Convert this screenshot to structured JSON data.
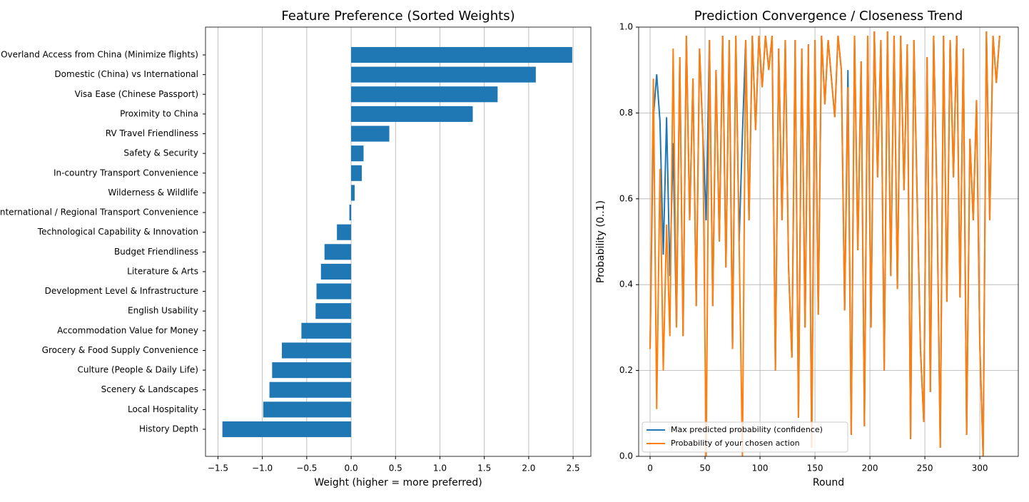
{
  "chart_data": [
    {
      "type": "barh",
      "title": "Feature Preference (Sorted Weights)",
      "x_label": "Weight (higher = more preferred)",
      "categories": [
        "Overland Access from China (Minimize flights)",
        "Domestic (China) vs International",
        "Visa Ease (Chinese Passport)",
        "Proximity to China",
        "RV Travel Friendliness",
        "Safety & Security",
        "In-country Transport Convenience",
        "Wilderness & Wildlife",
        "International / Regional Transport Convenience",
        "Technological Capability & Innovation",
        "Budget Friendliness",
        "Literature & Arts",
        "Development Level & Infrastructure",
        "English Usability",
        "Accommodation Value for Money",
        "Grocery & Food Supply Convenience",
        "Culture (People & Daily Life)",
        "Scenery & Landscapes",
        "Local Hospitality",
        "History Depth"
      ],
      "values": [
        2.49,
        2.08,
        1.65,
        1.37,
        0.43,
        0.14,
        0.12,
        0.04,
        -0.02,
        -0.16,
        -0.3,
        -0.34,
        -0.39,
        -0.4,
        -0.56,
        -0.78,
        -0.89,
        -0.92,
        -0.99,
        -1.45
      ],
      "color": "#1f77b4",
      "xlim": [
        -1.64,
        2.7
      ],
      "xticks": [
        {
          "value": -1.5,
          "label": "−1.5"
        },
        {
          "value": -1.0,
          "label": "−1.0"
        },
        {
          "value": -0.5,
          "label": "−0.5"
        },
        {
          "value": 0,
          "label": "0.0"
        },
        0.5,
        {
          "value": 1,
          "label": "1.0"
        },
        1.5,
        {
          "value": 2,
          "label": "2.0"
        },
        2.5
      ],
      "grid": "x"
    },
    {
      "type": "line",
      "title": "Prediction Convergence / Closeness Trend",
      "x_label": "Round",
      "y_label": "Probability (0..1)",
      "x": [
        0,
        3,
        6,
        9,
        12,
        15,
        18,
        21,
        24,
        27,
        30,
        33,
        36,
        39,
        42,
        45,
        48,
        51,
        54,
        57,
        60,
        63,
        66,
        69,
        72,
        75,
        78,
        81,
        84,
        87,
        90,
        93,
        96,
        99,
        102,
        105,
        108,
        111,
        114,
        117,
        120,
        123,
        126,
        129,
        132,
        135,
        138,
        141,
        144,
        147,
        150,
        153,
        156,
        159,
        162,
        165,
        168,
        171,
        174,
        177,
        180,
        183,
        186,
        189,
        192,
        195,
        198,
        201,
        204,
        207,
        210,
        213,
        216,
        219,
        222,
        225,
        228,
        231,
        234,
        237,
        240,
        243,
        246,
        249,
        252,
        255,
        258,
        261,
        264,
        267,
        270,
        273,
        276,
        279,
        282,
        285,
        288,
        291,
        294,
        297,
        300,
        303,
        306,
        309,
        312,
        315,
        318
      ],
      "series": [
        {
          "name": "Max predicted probability (confidence)",
          "color": "#1f77b4",
          "values": [
            0.25,
            0.79,
            0.89,
            0.78,
            0.47,
            0.79,
            0.42,
            0.73,
            0.3,
            0.93,
            0.28,
            0.98,
            0.55,
            0.88,
            0.35,
            0.95,
            0.75,
            0.55,
            0.97,
            0.35,
            0.9,
            0.5,
            0.98,
            0.44,
            0.97,
            0.25,
            0.98,
            0.5,
            0.75,
            0.97,
            0.55,
            0.98,
            0.76,
            0.98,
            0.86,
            0.98,
            0.9,
            0.98,
            0.2,
            0.95,
            0.55,
            0.97,
            0.44,
            0.23,
            0.97,
            0.09,
            0.95,
            0.3,
            0.96,
            0.02,
            0.97,
            0.33,
            0.98,
            0.82,
            0.97,
            0.88,
            0.79,
            0.98,
            0.9,
            0.34,
            0.9,
            0.05,
            0.98,
            0.48,
            0.92,
            0.07,
            0.98,
            0.3,
            0.99,
            0.65,
            0.97,
            0.2,
            0.99,
            0.42,
            0.98,
            0.39,
            0.98,
            0.62,
            0.96,
            0.04,
            0.97,
            0.6,
            0.25,
            0.08,
            0.93,
            0.15,
            0.98,
            0.6,
            0.02,
            0.98,
            0.36,
            0.97,
            0.65,
            0.98,
            0.37,
            0.95,
            0.05,
            0.74,
            0.55,
            0.83,
            0.26,
            0.0,
            0.99,
            0.55,
            0.98,
            0.87,
            0.98
          ]
        },
        {
          "name": "Probability of your chosen action",
          "color": "#ff7f0e",
          "values": [
            0.25,
            0.88,
            0.11,
            0.67,
            0.2,
            0.54,
            0.28,
            0.95,
            0.3,
            0.93,
            0.28,
            0.98,
            0.55,
            0.88,
            0.35,
            0.95,
            0.75,
            0.0,
            0.97,
            0.35,
            0.9,
            0.5,
            0.98,
            0.44,
            0.97,
            0.25,
            0.98,
            0.5,
            0.0,
            0.97,
            0.55,
            0.98,
            0.76,
            0.98,
            0.86,
            0.98,
            0.9,
            0.98,
            0.2,
            0.95,
            0.55,
            0.97,
            0.44,
            0.23,
            0.97,
            0.09,
            0.95,
            0.3,
            0.96,
            0.02,
            0.97,
            0.33,
            0.98,
            0.82,
            0.97,
            0.88,
            0.79,
            0.98,
            0.9,
            0.34,
            0.86,
            0.05,
            0.98,
            0.48,
            0.92,
            0.07,
            0.98,
            0.3,
            0.99,
            0.65,
            0.97,
            0.2,
            0.99,
            0.42,
            0.98,
            0.39,
            0.98,
            0.62,
            0.96,
            0.04,
            0.97,
            0.6,
            0.25,
            0.08,
            0.93,
            0.15,
            0.98,
            0.6,
            0.02,
            0.98,
            0.36,
            0.97,
            0.65,
            0.98,
            0.37,
            0.95,
            0.05,
            0.74,
            0.55,
            0.83,
            0.26,
            0.0,
            0.99,
            0.55,
            0.98,
            0.87,
            0.98
          ]
        }
      ],
      "xlim": [
        -10.4,
        335
      ],
      "xticks": [
        0,
        50,
        100,
        150,
        200,
        250,
        300
      ],
      "ylim": [
        0,
        1
      ],
      "yticks": [
        {
          "value": 0,
          "label": "0.0"
        },
        0.2,
        0.4,
        0.6,
        0.8,
        {
          "value": 1,
          "label": "1.0"
        }
      ],
      "grid": "both",
      "legend": "lower left"
    }
  ]
}
